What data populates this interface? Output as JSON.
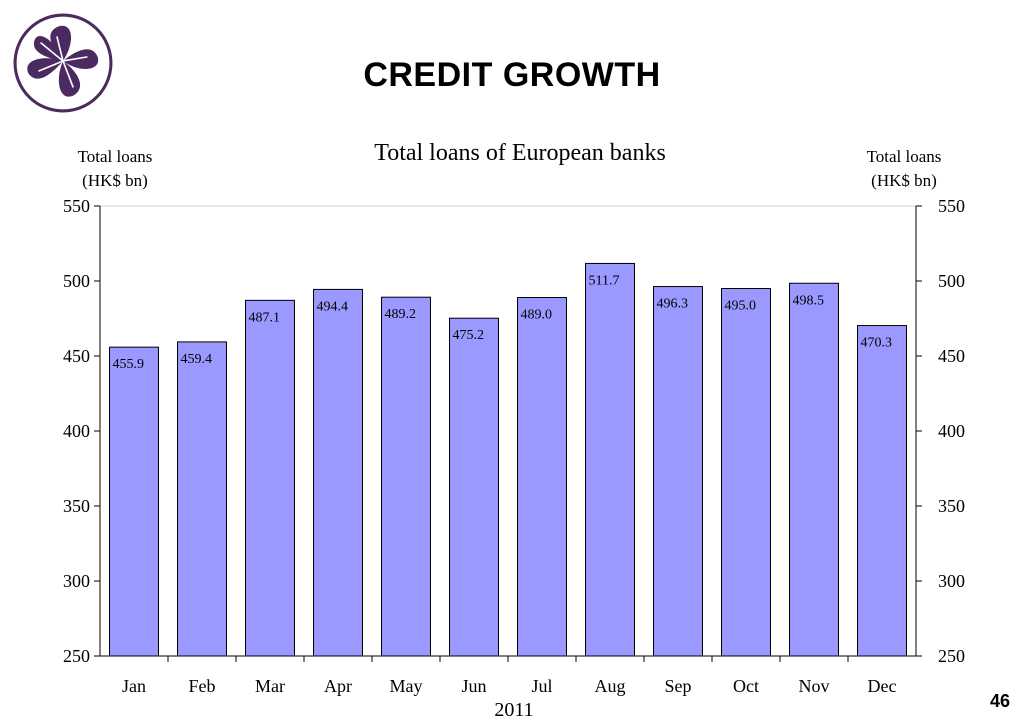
{
  "slide": {
    "title": "CREDIT GROWTH",
    "page_number": "46"
  },
  "logo": {
    "icon": "bauhinia-flower-icon",
    "color": "#4b2a62"
  },
  "chart_data": {
    "type": "bar",
    "title": "Total loans of European banks",
    "ylabel_left": [
      "Total loans",
      "(HK$ bn)"
    ],
    "ylabel_right": [
      "Total loans",
      "(HK$ bn)"
    ],
    "xlabel": "2011",
    "categories": [
      "Jan",
      "Feb",
      "Mar",
      "Apr",
      "May",
      "Jun",
      "Jul",
      "Aug",
      "Sep",
      "Oct",
      "Nov",
      "Dec"
    ],
    "values": [
      455.9,
      459.4,
      487.1,
      494.4,
      489.2,
      475.2,
      489.0,
      511.7,
      496.3,
      495.0,
      498.5,
      470.3
    ],
    "value_labels": [
      "455.9",
      "459.4",
      "487.1",
      "494.4",
      "489.2",
      "475.2",
      "489.0",
      "511.7",
      "496.3",
      "495.0",
      "498.5",
      "470.3"
    ],
    "ylim": [
      250,
      550
    ],
    "yticks": [
      250,
      300,
      350,
      400,
      450,
      500,
      550
    ],
    "grid": false,
    "bar_color": "#9999ff"
  }
}
